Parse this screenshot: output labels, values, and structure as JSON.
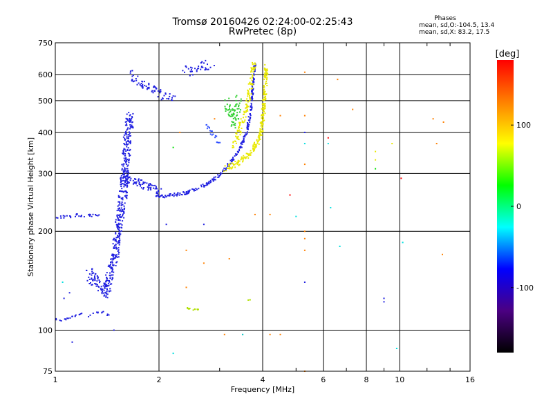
{
  "header": {
    "title": "Tromsø 20160426 02:24:00-02:25:43",
    "subtitle": "RwPretec (8p)"
  },
  "stats": {
    "heading": "Phases",
    "line_o": "mean, sd,O:-104.5, 13.4",
    "line_x": "mean, sd,X:  83.2, 17.5"
  },
  "chart_data": {
    "type": "scatter",
    "title": "Tromsø 20160426 02:24:00-02:25:43",
    "subtitle": "RwPretec (8p)",
    "xlabel": "Frequency [MHz]",
    "ylabel": "Stationary phase Virtual Height [km]",
    "x_scale": "log",
    "y_scale": "log",
    "xlim": [
      1,
      16
    ],
    "ylim": [
      75,
      750
    ],
    "x_ticks": [
      1,
      2,
      4,
      6,
      8,
      10,
      16
    ],
    "x_tick_labels": [
      "1",
      "2",
      "4",
      "6",
      "8",
      "10",
      "16"
    ],
    "y_ticks": [
      75,
      100,
      200,
      300,
      400,
      500,
      600,
      750
    ],
    "y_tick_labels": [
      "75",
      "100",
      "200",
      "300",
      "400",
      "500",
      "600",
      "750"
    ],
    "grid": true,
    "colorbar": {
      "label": "[deg]",
      "range": [
        -180,
        180
      ],
      "ticks": [
        -100,
        0,
        100
      ],
      "tick_labels": [
        "-100",
        "0",
        "100"
      ],
      "colors": [
        "#000000",
        "#4b0082",
        "#0000ff",
        "#00ffff",
        "#00ff00",
        "#ffff00",
        "#ff8000",
        "#ff0000"
      ]
    },
    "series": [
      {
        "type": "band",
        "color": "#2020e0",
        "phase": -105,
        "points": [
          [
            1.0,
            222
          ],
          [
            1.05,
            221
          ],
          [
            1.1,
            222
          ],
          [
            1.15,
            224
          ],
          [
            1.22,
            222
          ],
          [
            1.3,
            225
          ],
          [
            1.35,
            223
          ]
        ],
        "jitter": 4,
        "density": 3
      },
      {
        "type": "band",
        "color": "#2020e0",
        "phase": -105,
        "points": [
          [
            1.0,
            108
          ],
          [
            1.05,
            107
          ],
          [
            1.1,
            109
          ],
          [
            1.15,
            111
          ],
          [
            1.2,
            113
          ]
        ],
        "jitter": 2,
        "density": 3
      },
      {
        "type": "band",
        "color": "#2020e0",
        "phase": -105,
        "points": [
          [
            1.25,
            150
          ],
          [
            1.3,
            142
          ],
          [
            1.35,
            135
          ],
          [
            1.4,
            130
          ],
          [
            1.45,
            150
          ],
          [
            1.5,
            175
          ],
          [
            1.52,
            200
          ],
          [
            1.55,
            230
          ],
          [
            1.58,
            270
          ],
          [
            1.6,
            320
          ],
          [
            1.62,
            380
          ],
          [
            1.65,
            450
          ]
        ],
        "jitter": 18,
        "density": 10
      },
      {
        "type": "band",
        "color": "#2020e0",
        "phase": -105,
        "points": [
          [
            1.25,
            110
          ],
          [
            1.3,
            112
          ],
          [
            1.35,
            115
          ],
          [
            1.4,
            112
          ],
          [
            1.45,
            110
          ]
        ],
        "jitter": 4,
        "density": 2
      },
      {
        "type": "band",
        "color": "#2020e0",
        "phase": -105,
        "points": [
          [
            1.55,
            300
          ],
          [
            1.6,
            285
          ],
          [
            1.65,
            290
          ],
          [
            1.7,
            283
          ],
          [
            1.8,
            278
          ],
          [
            1.9,
            272
          ],
          [
            2.0,
            265
          ]
        ],
        "jitter": 12,
        "density": 8
      },
      {
        "type": "band",
        "color": "#2020e0",
        "phase": -105,
        "points": [
          [
            1.95,
            258
          ],
          [
            2.05,
            256
          ],
          [
            2.2,
            258
          ],
          [
            2.4,
            262
          ],
          [
            2.6,
            270
          ],
          [
            2.8,
            282
          ],
          [
            3.0,
            296
          ],
          [
            3.2,
            320
          ],
          [
            3.4,
            350
          ],
          [
            3.6,
            400
          ],
          [
            3.7,
            470
          ],
          [
            3.75,
            560
          ],
          [
            3.8,
            650
          ]
        ],
        "jitter": 5,
        "density": 6
      },
      {
        "type": "band",
        "color": "#2020e0",
        "phase": -105,
        "points": [
          [
            1.65,
            610
          ],
          [
            1.72,
            580
          ],
          [
            1.8,
            560
          ],
          [
            1.9,
            545
          ],
          [
            2.0,
            525
          ],
          [
            2.1,
            515
          ],
          [
            2.2,
            510
          ]
        ],
        "jitter": 12,
        "density": 6
      },
      {
        "type": "band",
        "color": "#2020e0",
        "phase": -105,
        "points": [
          [
            2.35,
            620
          ],
          [
            2.45,
            610
          ],
          [
            2.55,
            630
          ],
          [
            2.7,
            640
          ],
          [
            2.85,
            640
          ]
        ],
        "jitter": 14,
        "density": 5
      },
      {
        "type": "band",
        "color": "#3050ff",
        "phase": -90,
        "points": [
          [
            2.7,
            430
          ],
          [
            2.8,
            410
          ],
          [
            2.9,
            390
          ],
          [
            3.0,
            370
          ]
        ],
        "jitter": 6,
        "density": 3
      },
      {
        "type": "band",
        "color": "#30d030",
        "phase": 30,
        "points": [
          [
            3.15,
            490
          ],
          [
            3.2,
            470
          ],
          [
            3.25,
            450
          ],
          [
            3.3,
            430
          ],
          [
            3.35,
            470
          ],
          [
            3.4,
            500
          ]
        ],
        "jitter": 18,
        "density": 7
      },
      {
        "type": "band",
        "color": "#e8e800",
        "phase": 100,
        "points": [
          [
            3.1,
            310
          ],
          [
            3.3,
            318
          ],
          [
            3.5,
            330
          ],
          [
            3.7,
            350
          ],
          [
            3.85,
            370
          ],
          [
            3.95,
            400
          ],
          [
            4.0,
            440
          ],
          [
            4.05,
            500
          ],
          [
            4.08,
            560
          ],
          [
            4.1,
            640
          ]
        ],
        "jitter": 8,
        "density": 8
      },
      {
        "type": "band",
        "color": "#e8e800",
        "phase": 100,
        "points": [
          [
            3.3,
            360
          ],
          [
            3.45,
            420
          ],
          [
            3.6,
            480
          ],
          [
            3.7,
            560
          ],
          [
            3.78,
            650
          ]
        ],
        "jitter": 10,
        "density": 6
      },
      {
        "type": "band",
        "color": "#b0e000",
        "phase": 80,
        "points": [
          [
            2.4,
            117
          ],
          [
            2.5,
            115
          ],
          [
            2.6,
            116
          ]
        ],
        "jitter": 2,
        "density": 4
      },
      {
        "type": "band",
        "color": "#b0e000",
        "phase": 80,
        "points": [
          [
            3.6,
            123
          ],
          [
            3.7,
            124
          ]
        ],
        "jitter": 1,
        "density": 3
      }
    ],
    "isolated_points": [
      [
        1.05,
        140,
        "#00e0e0"
      ],
      [
        1.12,
        92,
        "#2020e0"
      ],
      [
        1.06,
        125,
        "#2020e0"
      ],
      [
        1.1,
        130,
        "#2020e0"
      ],
      [
        1.48,
        100,
        "#2020e0"
      ],
      [
        2.1,
        210,
        "#2020e0"
      ],
      [
        2.2,
        360,
        "#00e000"
      ],
      [
        2.3,
        400,
        "#ff8000"
      ],
      [
        2.4,
        175,
        "#ff8000"
      ],
      [
        2.4,
        135,
        "#ff8000"
      ],
      [
        2.2,
        85,
        "#00e0e0"
      ],
      [
        2.7,
        160,
        "#ff8000"
      ],
      [
        2.7,
        210,
        "#2020e0"
      ],
      [
        2.9,
        440,
        "#ff8000"
      ],
      [
        3.1,
        97,
        "#ff8000"
      ],
      [
        3.2,
        165,
        "#ff8000"
      ],
      [
        3.5,
        97,
        "#00c0c0"
      ],
      [
        3.8,
        225,
        "#ff8000"
      ],
      [
        4.2,
        97,
        "#ff8000"
      ],
      [
        4.2,
        225,
        "#ff8000"
      ],
      [
        4.5,
        450,
        "#ff8000"
      ],
      [
        4.5,
        97,
        "#ff8000"
      ],
      [
        4.8,
        258,
        "#ff0000"
      ],
      [
        5.0,
        222,
        "#00e0e0"
      ],
      [
        5.3,
        140,
        "#2020e0"
      ],
      [
        5.3,
        175,
        "#ff8000"
      ],
      [
        5.3,
        200,
        "#ff8000"
      ],
      [
        5.3,
        190,
        "#ff8000"
      ],
      [
        5.3,
        320,
        "#ff8000"
      ],
      [
        5.3,
        370,
        "#00e0e0"
      ],
      [
        5.3,
        400,
        "#2020e0"
      ],
      [
        5.3,
        450,
        "#ff8000"
      ],
      [
        5.3,
        610,
        "#ff8000"
      ],
      [
        5.3,
        75,
        "#ff8000"
      ],
      [
        6.2,
        385,
        "#ff0000"
      ],
      [
        6.2,
        370,
        "#00e0e0"
      ],
      [
        6.3,
        236,
        "#00e0e0"
      ],
      [
        6.6,
        580,
        "#ff8000"
      ],
      [
        6.7,
        180,
        "#00e0e0"
      ],
      [
        7.3,
        470,
        "#ff8000"
      ],
      [
        8.5,
        350,
        "#e8e800"
      ],
      [
        8.5,
        330,
        "#e8e800"
      ],
      [
        8.5,
        310,
        "#00e000"
      ],
      [
        9.0,
        125,
        "#2020e0"
      ],
      [
        9.0,
        122,
        "#2020e0"
      ],
      [
        9.5,
        370,
        "#e8e800"
      ],
      [
        9.8,
        88,
        "#00e0e0"
      ],
      [
        10.1,
        290,
        "#ff0000"
      ],
      [
        10.2,
        185,
        "#00e0e0"
      ],
      [
        12.5,
        440,
        "#ff8000"
      ],
      [
        12.8,
        370,
        "#ff8000"
      ],
      [
        13.3,
        170,
        "#ff8000"
      ],
      [
        13.4,
        430,
        "#ff8000"
      ]
    ]
  }
}
